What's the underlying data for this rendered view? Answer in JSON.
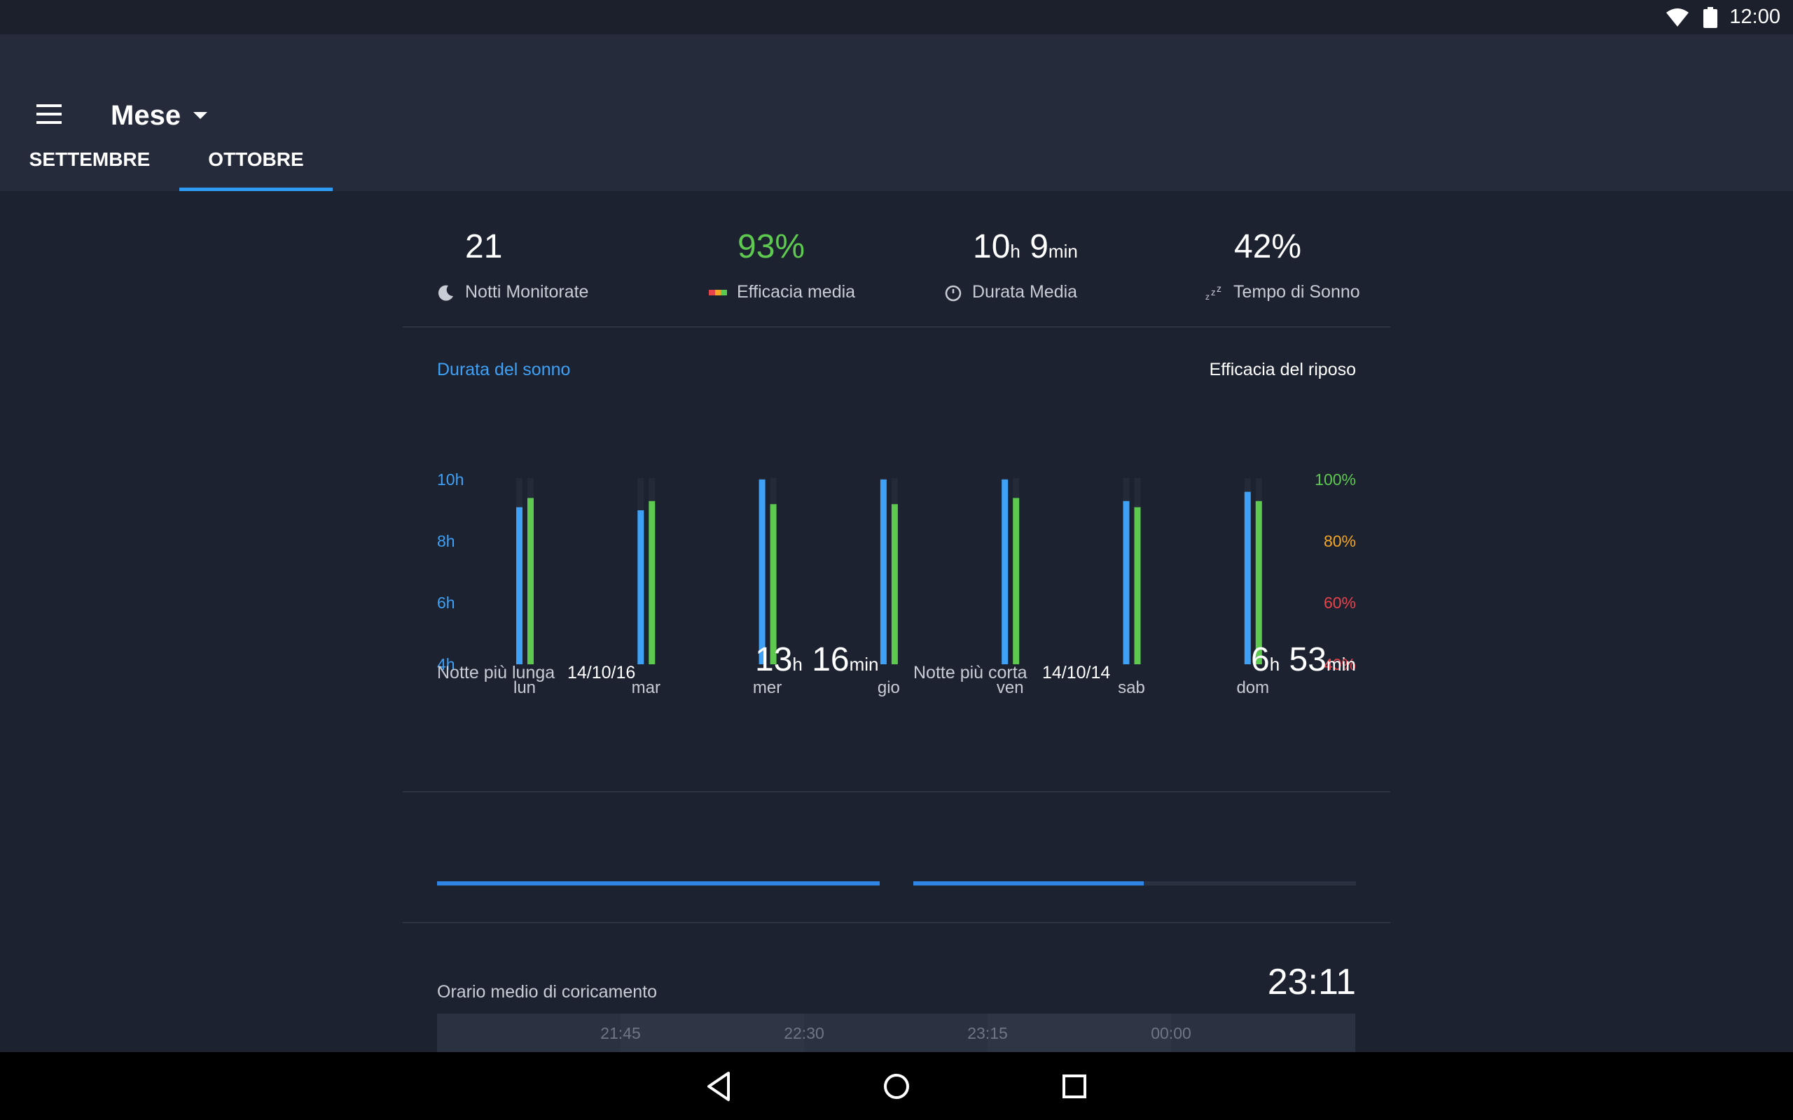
{
  "status_bar": {
    "time": "12:00"
  },
  "header": {
    "period_label": "Mese"
  },
  "tabs": [
    {
      "label": "SETTEMBRE",
      "active": false
    },
    {
      "label": "OTTOBRE",
      "active": true
    }
  ],
  "stats": {
    "nights": {
      "value": "21",
      "label": "Notti Monitorate"
    },
    "efficiency": {
      "value": "93%",
      "label": "Efficacia media",
      "color": "#5ec94f"
    },
    "duration": {
      "hours": "10",
      "h_unit": "h",
      "minutes": "9",
      "min_unit": "min",
      "label": "Durata Media"
    },
    "sleep_time": {
      "value": "42%",
      "label": "Tempo di Sonno"
    }
  },
  "chart_toggle": {
    "left": "Durata del sonno",
    "right": "Efficacia del riposo"
  },
  "chart_data": {
    "type": "bar",
    "categories": [
      "lun",
      "mar",
      "mer",
      "gio",
      "ven",
      "sab",
      "dom"
    ],
    "left_axis": {
      "ticks": [
        "10h",
        "8h",
        "6h",
        "4h"
      ],
      "ylim": [
        4,
        10
      ],
      "color": "#3ea1f6"
    },
    "right_axis": {
      "ticks": [
        {
          "label": "100%",
          "color": "#5ec94f"
        },
        {
          "label": "80%",
          "color": "#f5a623"
        },
        {
          "label": "60%",
          "color": "#e9434a"
        },
        {
          "label": "40%",
          "color": "#e9434a"
        }
      ],
      "ylim": [
        40,
        100
      ]
    },
    "series": [
      {
        "values": [
          9.1,
          9.0,
          10.0,
          10.0,
          10.0,
          9.3,
          9.6
        ],
        "color": "#3ea1f6",
        "unit": "h"
      },
      {
        "values": [
          94,
          93,
          92,
          92,
          94,
          91,
          93
        ],
        "color": "#5ec94f",
        "unit": "%"
      }
    ]
  },
  "longest_night": {
    "label": "Notte più lunga",
    "date": "14/10/16",
    "hours": "13",
    "minutes": "16",
    "h_unit": "h",
    "min_unit": "min",
    "progress": 1.0
  },
  "shortest_night": {
    "label": "Notte più corta",
    "date": "14/10/14",
    "hours": "6",
    "minutes": "53",
    "h_unit": "h",
    "min_unit": "min",
    "progress": 0.52
  },
  "bedtime": {
    "label": "Orario medio di coricamento",
    "value": "23:11",
    "ticks": [
      "21:45",
      "22:30",
      "23:15",
      "00:00"
    ]
  }
}
